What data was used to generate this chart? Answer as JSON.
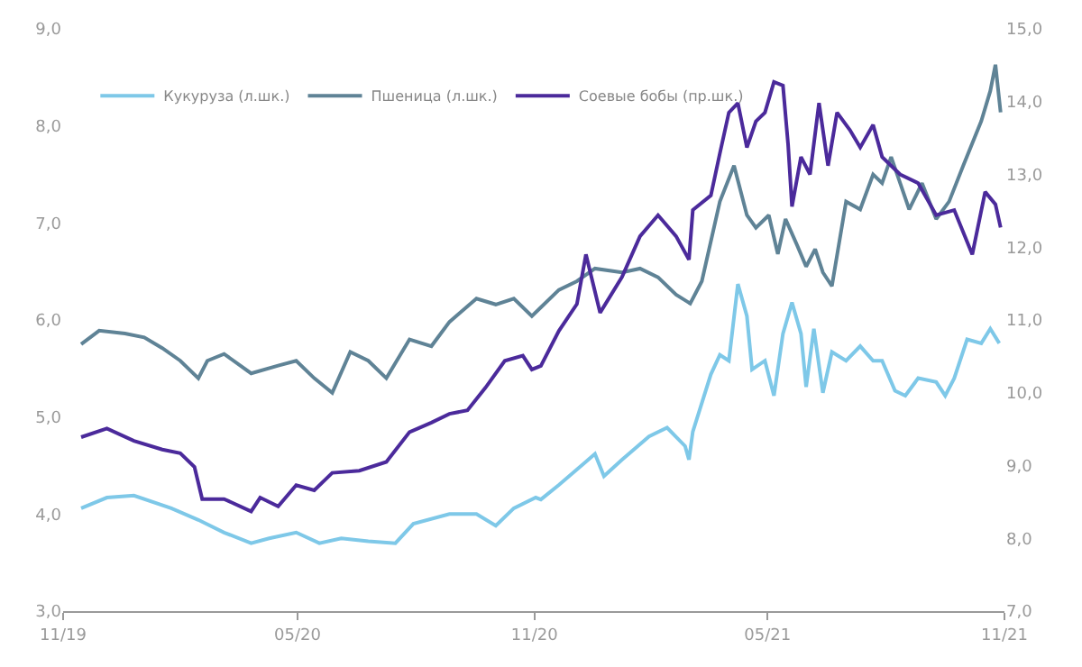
{
  "chart_data": {
    "type": "line",
    "legend": "top left",
    "marker": "none",
    "line_style": "solid",
    "xlim": [
      "2019-11-01",
      "2021-11-01"
    ],
    "xticks": [
      {
        "value": "2019-11-01",
        "label": "11/19"
      },
      {
        "value": "2020-05-01",
        "label": "05/20"
      },
      {
        "value": "2020-11-01",
        "label": "11/20"
      },
      {
        "value": "2021-05-01",
        "label": "05/21"
      },
      {
        "value": "2021-11-01",
        "label": "11/21"
      }
    ],
    "ylim": [
      3,
      9
    ],
    "yticks": [
      {
        "value": 3,
        "label": "3,0"
      },
      {
        "value": 4,
        "label": "4,0"
      },
      {
        "value": 5,
        "label": "5,0"
      },
      {
        "value": 6,
        "label": "6,0"
      },
      {
        "value": 7,
        "label": "7,0"
      },
      {
        "value": 8,
        "label": "8,0"
      },
      {
        "value": 9,
        "label": "9,0"
      }
    ],
    "y2lim": [
      7,
      15
    ],
    "y2ticks": [
      {
        "value": 7,
        "label": "7,0"
      },
      {
        "value": 8,
        "label": "8,0"
      },
      {
        "value": 9,
        "label": "9,0"
      },
      {
        "value": 10,
        "label": "10,0"
      },
      {
        "value": 11,
        "label": "11,0"
      },
      {
        "value": 12,
        "label": "12,0"
      },
      {
        "value": 13,
        "label": "13,0"
      },
      {
        "value": 14,
        "label": "14,0"
      },
      {
        "value": 15,
        "label": "15,0"
      }
    ],
    "series": [
      {
        "name": "Кукуруза (л.шк.)",
        "color": "#7ec8e8",
        "x": [
          "2019-11-15",
          "2019-12-05",
          "2019-12-26",
          "2020-01-24",
          "2020-02-14",
          "2020-03-05",
          "2020-03-26",
          "2020-04-09",
          "2020-04-30",
          "2020-05-18",
          "2020-06-04",
          "2020-06-25",
          "2020-07-16",
          "2020-07-30",
          "2020-08-27",
          "2020-09-17",
          "2020-10-02",
          "2020-10-16",
          "2020-11-02",
          "2020-11-06",
          "2020-11-20",
          "2020-12-11",
          "2020-12-18",
          "2020-12-25",
          "2021-01-08",
          "2021-01-29",
          "2021-02-12",
          "2021-02-26",
          "2021-03-01",
          "2021-03-04",
          "2021-03-18",
          "2021-03-25",
          "2021-04-01",
          "2021-04-08",
          "2021-04-15",
          "2021-04-19",
          "2021-04-29",
          "2021-05-06",
          "2021-05-13",
          "2021-05-20",
          "2021-05-27",
          "2021-05-31",
          "2021-06-06",
          "2021-06-13",
          "2021-06-20",
          "2021-07-01",
          "2021-07-12",
          "2021-07-22",
          "2021-07-29",
          "2021-08-08",
          "2021-08-16",
          "2021-08-26",
          "2021-09-09",
          "2021-09-16",
          "2021-09-23",
          "2021-10-03",
          "2021-10-14",
          "2021-10-21",
          "2021-10-28"
        ],
        "values": [
          4.06,
          4.17,
          4.19,
          4.06,
          3.94,
          3.81,
          3.7,
          3.75,
          3.81,
          3.7,
          3.75,
          3.72,
          3.7,
          3.9,
          4.0,
          4.0,
          3.88,
          4.06,
          4.17,
          4.15,
          4.3,
          4.54,
          4.62,
          4.39,
          4.56,
          4.8,
          4.89,
          4.7,
          4.56,
          4.85,
          5.44,
          5.64,
          5.58,
          6.37,
          6.04,
          5.49,
          5.58,
          5.22,
          5.86,
          6.18,
          5.86,
          5.31,
          5.91,
          5.25,
          5.67,
          5.58,
          5.73,
          5.58,
          5.58,
          5.27,
          5.22,
          5.4,
          5.36,
          5.22,
          5.4,
          5.8,
          5.76,
          5.91,
          5.76
        ]
      },
      {
        "name": "Пшеница (л.шк.)",
        "color": "#5f8396",
        "x": [
          "2019-11-15",
          "2019-11-29",
          "2019-12-19",
          "2020-01-03",
          "2020-01-17",
          "2020-01-31",
          "2020-02-14",
          "2020-02-21",
          "2020-03-05",
          "2020-03-26",
          "2020-04-16",
          "2020-04-30",
          "2020-05-14",
          "2020-05-28",
          "2020-06-11",
          "2020-06-25",
          "2020-07-09",
          "2020-07-27",
          "2020-08-13",
          "2020-08-27",
          "2020-09-17",
          "2020-10-02",
          "2020-10-16",
          "2020-10-30",
          "2020-11-06",
          "2020-11-20",
          "2020-12-04",
          "2020-12-18",
          "2021-01-08",
          "2021-01-22",
          "2021-02-05",
          "2021-02-19",
          "2021-03-02",
          "2021-03-11",
          "2021-03-25",
          "2021-04-05",
          "2021-04-15",
          "2021-04-22",
          "2021-05-02",
          "2021-05-09",
          "2021-05-15",
          "2021-05-24",
          "2021-05-31",
          "2021-06-07",
          "2021-06-13",
          "2021-06-20",
          "2021-07-01",
          "2021-07-12",
          "2021-07-22",
          "2021-07-29",
          "2021-08-05",
          "2021-08-12",
          "2021-08-19",
          "2021-08-29",
          "2021-09-09",
          "2021-09-19",
          "2021-09-30",
          "2021-10-14",
          "2021-10-21",
          "2021-10-25",
          "2021-10-29"
        ],
        "values": [
          5.75,
          5.89,
          5.86,
          5.82,
          5.71,
          5.58,
          5.4,
          5.58,
          5.65,
          5.45,
          5.53,
          5.58,
          5.4,
          5.25,
          5.67,
          5.58,
          5.4,
          5.8,
          5.73,
          5.98,
          6.22,
          6.16,
          6.22,
          6.04,
          6.13,
          6.31,
          6.4,
          6.53,
          6.49,
          6.53,
          6.44,
          6.26,
          6.17,
          6.4,
          7.22,
          7.59,
          7.08,
          6.95,
          7.08,
          6.68,
          7.04,
          6.77,
          6.55,
          6.73,
          6.49,
          6.35,
          7.22,
          7.14,
          7.5,
          7.41,
          7.68,
          7.41,
          7.14,
          7.41,
          7.04,
          7.22,
          7.59,
          8.05,
          8.36,
          8.63,
          8.14
        ]
      },
      {
        "name": "Соевые бобы (пр.шк.)",
        "color": "#4b2a9b",
        "axis": "y2",
        "x": [
          "2019-11-15",
          "2019-12-05",
          "2019-12-26",
          "2020-01-17",
          "2020-01-31",
          "2020-02-11",
          "2020-02-17",
          "2020-03-05",
          "2020-03-26",
          "2020-04-02",
          "2020-04-16",
          "2020-04-30",
          "2020-05-14",
          "2020-05-28",
          "2020-06-18",
          "2020-07-09",
          "2020-07-27",
          "2020-08-13",
          "2020-08-27",
          "2020-09-10",
          "2020-09-24",
          "2020-10-09",
          "2020-10-23",
          "2020-10-30",
          "2020-11-06",
          "2020-11-20",
          "2020-12-04",
          "2020-12-11",
          "2020-12-22",
          "2021-01-08",
          "2021-01-22",
          "2021-02-05",
          "2021-02-19",
          "2021-03-01",
          "2021-03-04",
          "2021-03-18",
          "2021-03-25",
          "2021-04-01",
          "2021-04-08",
          "2021-04-15",
          "2021-04-22",
          "2021-04-29",
          "2021-05-06",
          "2021-05-13",
          "2021-05-17",
          "2021-05-20",
          "2021-05-27",
          "2021-06-03",
          "2021-06-10",
          "2021-06-17",
          "2021-06-24",
          "2021-07-04",
          "2021-07-12",
          "2021-07-22",
          "2021-07-29",
          "2021-08-12",
          "2021-08-26",
          "2021-09-09",
          "2021-09-23",
          "2021-10-07",
          "2021-10-17",
          "2021-10-25",
          "2021-10-29"
        ],
        "values": [
          9.39,
          9.51,
          9.34,
          9.22,
          9.17,
          8.98,
          8.54,
          8.54,
          8.37,
          8.56,
          8.44,
          8.73,
          8.66,
          8.9,
          8.93,
          9.05,
          9.46,
          9.59,
          9.71,
          9.76,
          10.07,
          10.44,
          10.51,
          10.32,
          10.37,
          10.85,
          11.22,
          11.9,
          11.1,
          11.59,
          12.15,
          12.44,
          12.15,
          11.83,
          12.51,
          12.71,
          13.29,
          13.85,
          13.98,
          13.37,
          13.73,
          13.85,
          14.27,
          14.22,
          13.41,
          12.56,
          13.24,
          13.0,
          13.98,
          13.12,
          13.85,
          13.61,
          13.37,
          13.68,
          13.24,
          13.0,
          12.88,
          12.44,
          12.51,
          11.9,
          12.76,
          12.59,
          12.27
        ]
      }
    ]
  }
}
